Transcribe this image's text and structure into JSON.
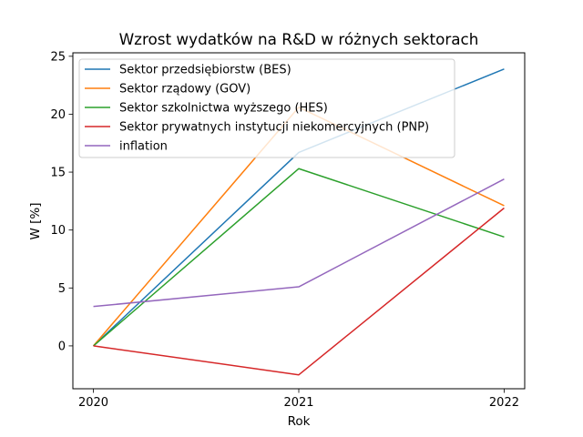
{
  "chart_data": {
    "type": "line",
    "title": "Wzrost wydatków na R&D w różnych sektorach",
    "xlabel": "Rok",
    "ylabel": "W [%]",
    "x": [
      2020,
      2021,
      2022
    ],
    "x_tick_labels": [
      "2020",
      "2021",
      "2022"
    ],
    "xlim": [
      2019.9,
      2022.1
    ],
    "ylim": [
      -3.7,
      25.3
    ],
    "y_ticks": [
      0,
      5,
      10,
      15,
      20,
      25
    ],
    "y_tick_labels": [
      "0",
      "5",
      "10",
      "15",
      "20",
      "25"
    ],
    "grid": false,
    "legend_position": "top-left",
    "series": [
      {
        "name": "Sektor przedsiębiorstw (BES)",
        "color": "#1f77b4",
        "values": [
          0,
          16.7,
          23.9
        ]
      },
      {
        "name": "Sektor rządowy (GOV)",
        "color": "#ff7f0e",
        "values": [
          0,
          20.6,
          12.1
        ]
      },
      {
        "name": "Sektor szkolnictwa wyższego (HES)",
        "color": "#2ca02c",
        "values": [
          0,
          15.3,
          9.4
        ]
      },
      {
        "name": "Sektor prywatnych instytucji niekomercyjnych (PNP)",
        "color": "#d62728",
        "values": [
          0,
          -2.5,
          11.9
        ]
      },
      {
        "name": "inflation",
        "color": "#9467bd",
        "values": [
          3.4,
          5.1,
          14.4
        ]
      }
    ]
  }
}
